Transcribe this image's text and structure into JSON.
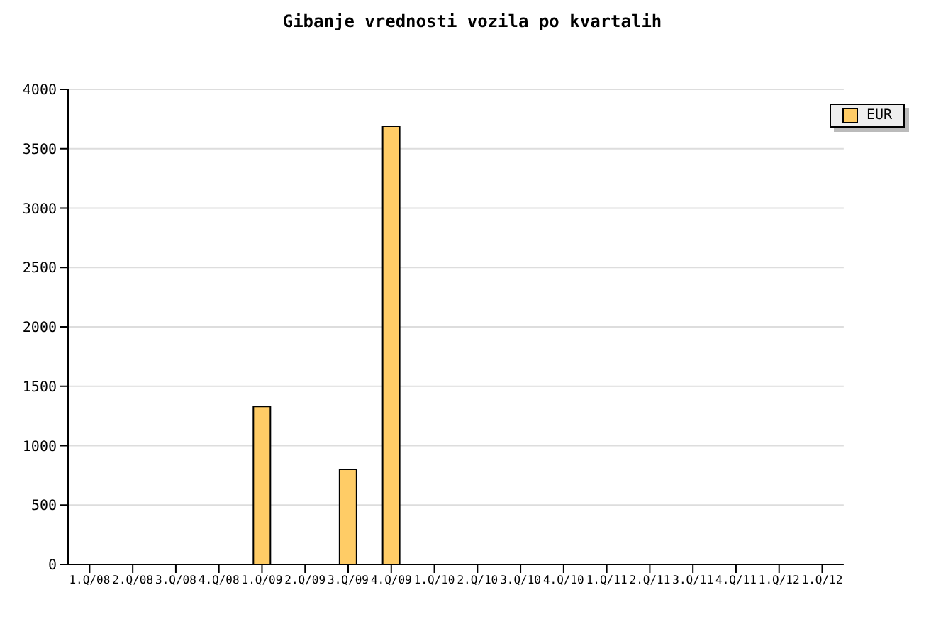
{
  "chart_data": {
    "type": "bar",
    "title": "Gibanje vrednosti vozila po kvartalih",
    "categories": [
      "1.Q/08",
      "2.Q/08",
      "3.Q/08",
      "4.Q/08",
      "1.Q/09",
      "2.Q/09",
      "3.Q/09",
      "4.Q/09",
      "1.Q/10",
      "2.Q/10",
      "3.Q/10",
      "4.Q/10",
      "1.Q/11",
      "2.Q/11",
      "3.Q/11",
      "4.Q/11",
      "1.Q/12",
      "1.Q/12"
    ],
    "series": [
      {
        "name": "EUR",
        "color": "#ffcc66",
        "values": [
          null,
          null,
          null,
          null,
          1330,
          null,
          800,
          3690,
          null,
          null,
          null,
          null,
          null,
          null,
          null,
          null,
          null,
          null
        ]
      }
    ],
    "ylim": [
      0,
      4000
    ],
    "yticks": [
      0,
      500,
      1000,
      1500,
      2000,
      2500,
      3000,
      3500,
      4000
    ],
    "grid": "y",
    "legend": "top right"
  }
}
